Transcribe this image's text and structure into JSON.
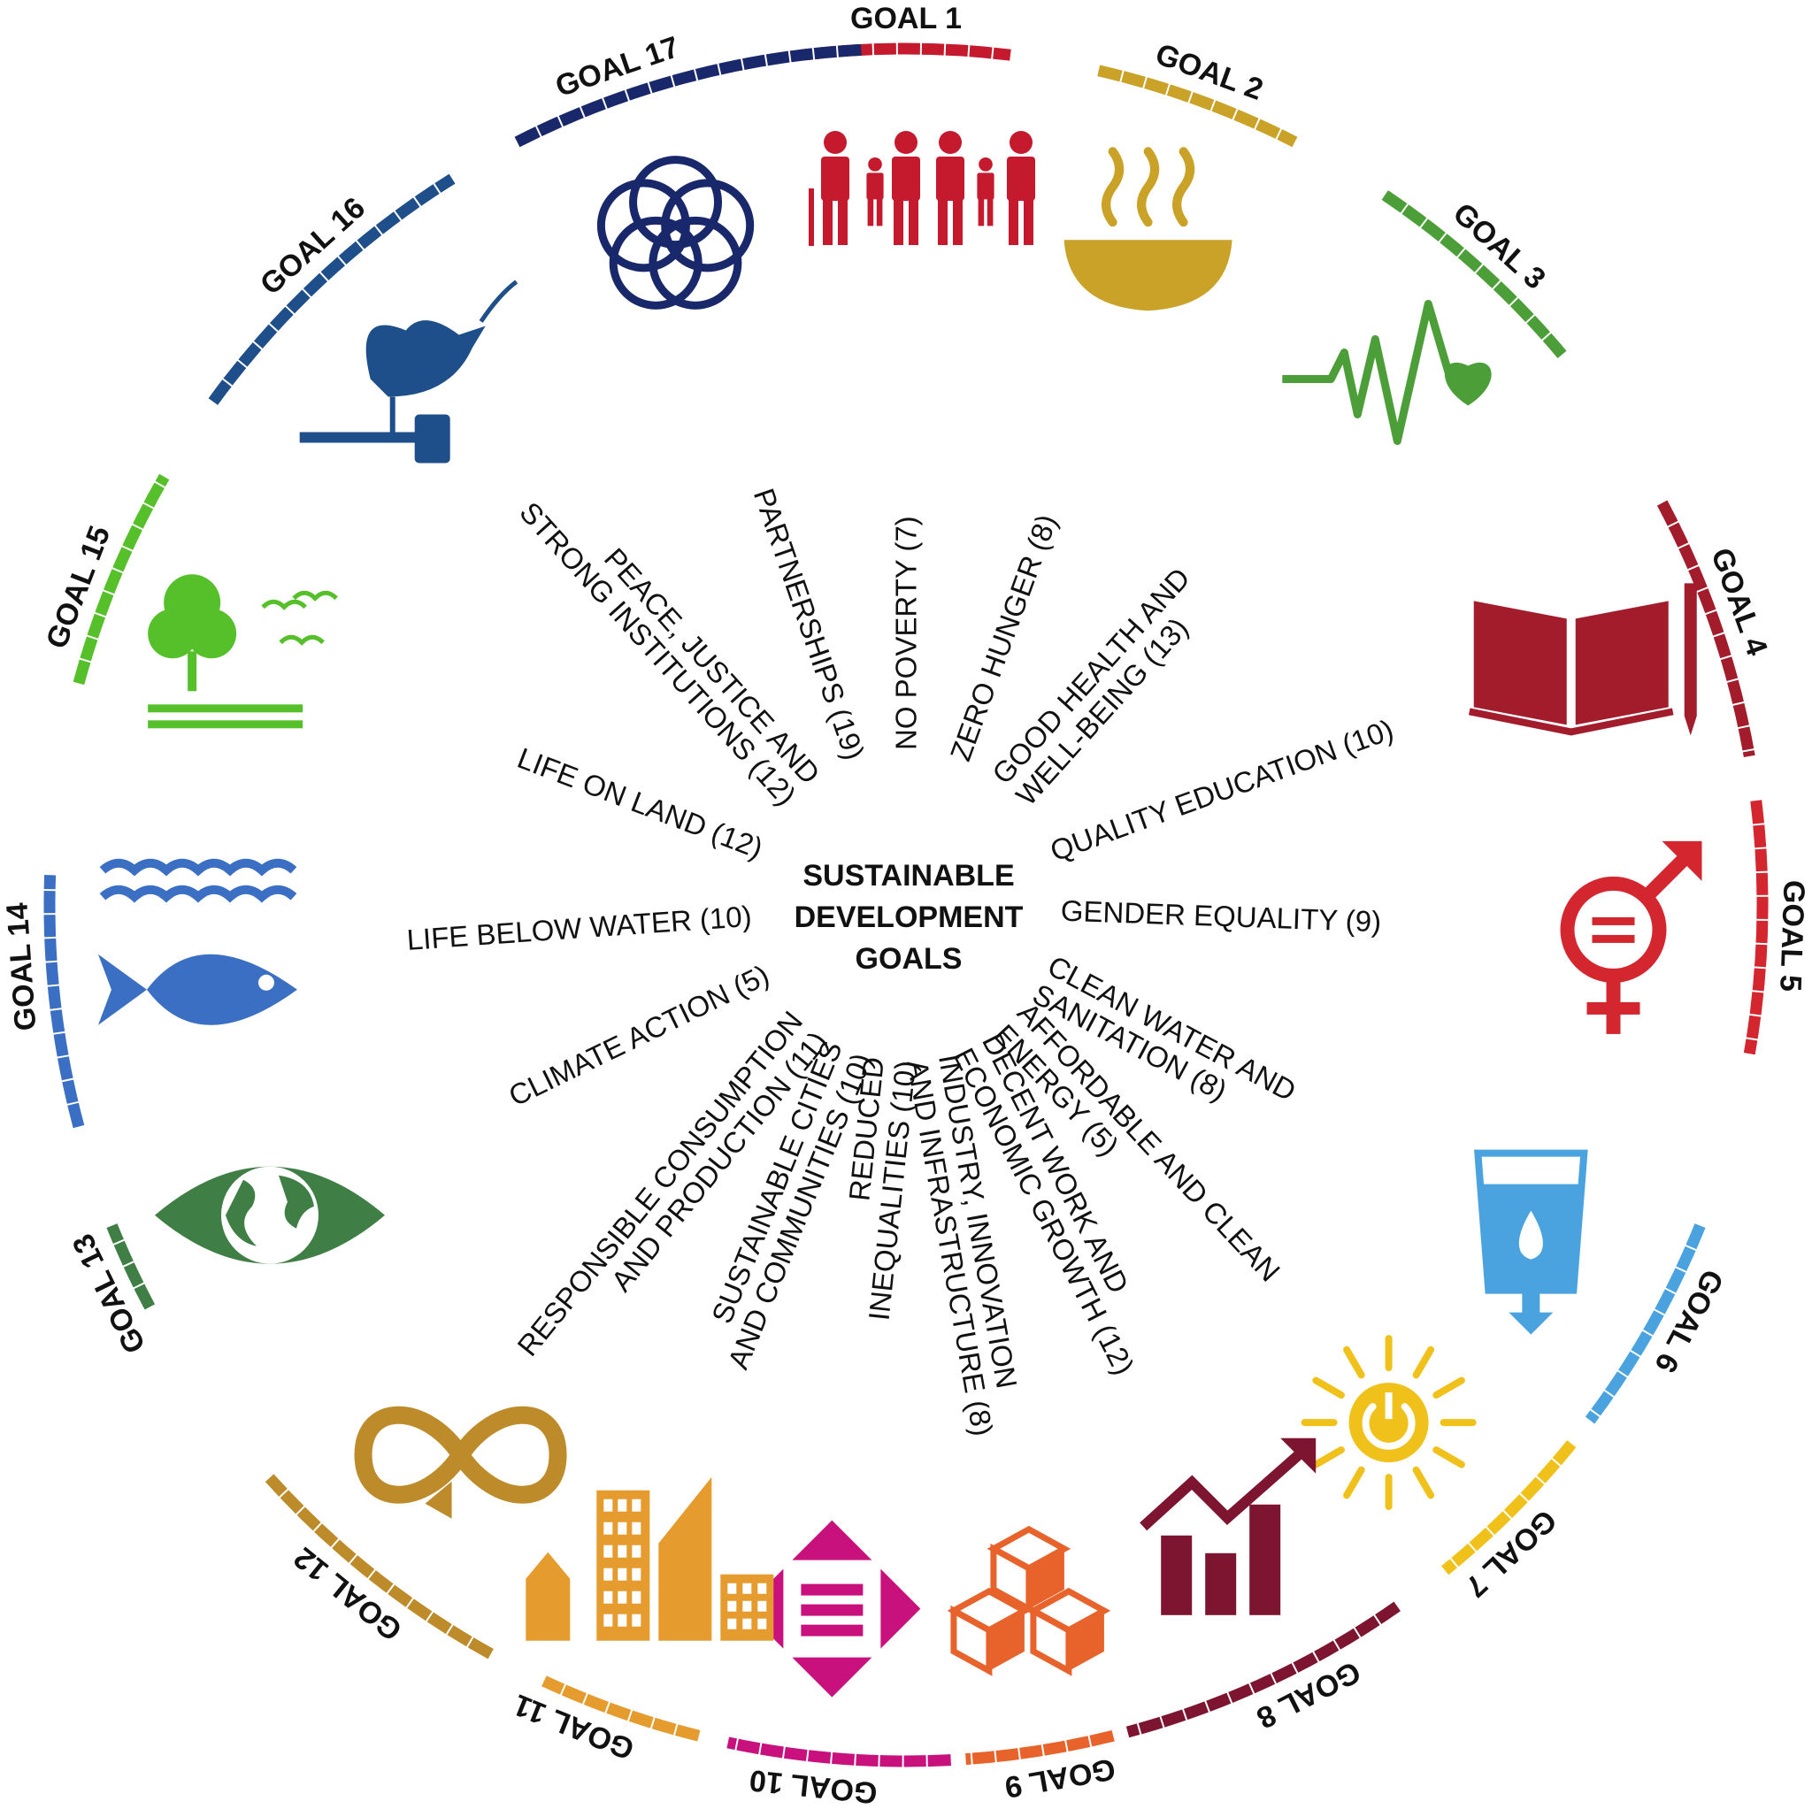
{
  "center": {
    "lines": [
      "SUSTAINABLE",
      "DEVELOPMENT",
      "GOALS"
    ]
  },
  "goals": [
    {
      "id": 1,
      "label": "GOAL 1",
      "color": "#C5192D",
      "icon": "family-icon",
      "spoke": [
        "NO POVERTY (7)"
      ]
    },
    {
      "id": 2,
      "label": "GOAL 2",
      "color": "#C9A227",
      "icon": "food-bowl-icon",
      "spoke": [
        "ZERO HUNGER (8)"
      ]
    },
    {
      "id": 3,
      "label": "GOAL 3",
      "color": "#4C9F38",
      "icon": "heartbeat-icon",
      "spoke": [
        "GOOD HEALTH AND",
        "WELL-BEING (13)"
      ]
    },
    {
      "id": 4,
      "label": "GOAL 4",
      "color": "#A21C2C",
      "icon": "book-pencil-icon",
      "spoke": [
        "QUALITY EDUCATION (10)"
      ]
    },
    {
      "id": 5,
      "label": "GOAL 5",
      "color": "#D3262E",
      "icon": "gender-equality-icon",
      "spoke": [
        "GENDER EQUALITY (9)"
      ]
    },
    {
      "id": 6,
      "label": "GOAL 6",
      "color": "#4AA3DF",
      "icon": "water-glass-icon",
      "spoke": [
        "CLEAN WATER AND",
        "SANITATION (8)"
      ]
    },
    {
      "id": 7,
      "label": "GOAL 7",
      "color": "#F0C11A",
      "icon": "sun-power-icon",
      "spoke": [
        "AFFORDABLE AND CLEAN",
        "ENERGY (5)"
      ]
    },
    {
      "id": 8,
      "label": "GOAL 8",
      "color": "#7E1530",
      "icon": "growth-chart-icon",
      "spoke": [
        "DECENT WORK AND",
        "ECONOMIC GROWTH (12)"
      ]
    },
    {
      "id": 9,
      "label": "GOAL 9",
      "color": "#E8632B",
      "icon": "cubes-icon",
      "spoke": [
        "INDUSTRY, INNOVATION",
        "AND INFRASTRUCTURE (8)"
      ]
    },
    {
      "id": 10,
      "label": "GOAL 10",
      "color": "#C8117D",
      "icon": "equality-arrows-icon",
      "spoke": [
        "REDUCED",
        "INEQUALITIES (10)"
      ]
    },
    {
      "id": 11,
      "label": "GOAL 11",
      "color": "#E59B2D",
      "icon": "city-buildings-icon",
      "spoke": [
        "SUSTAINABLE CITIES",
        "AND COMMUNITIES (10)"
      ]
    },
    {
      "id": 12,
      "label": "GOAL 12",
      "color": "#BE8B2B",
      "icon": "infinity-loop-icon",
      "spoke": [
        "RESPONSIBLE CONSUMPTION",
        "AND PRODUCTION (11)"
      ]
    },
    {
      "id": 13,
      "label": "GOAL 13",
      "color": "#3F7E44",
      "icon": "earth-eye-icon",
      "spoke": [
        "CLIMATE ACTION (5)"
      ]
    },
    {
      "id": 14,
      "label": "GOAL 14",
      "color": "#3A6FC4",
      "icon": "fish-waves-icon",
      "spoke": [
        "LIFE BELOW WATER (10)"
      ]
    },
    {
      "id": 15,
      "label": "GOAL 15",
      "color": "#56C02B",
      "icon": "tree-birds-icon",
      "spoke": [
        "LIFE ON LAND (12)"
      ]
    },
    {
      "id": 16,
      "label": "GOAL 16",
      "color": "#1E4F8B",
      "icon": "dove-gavel-icon",
      "spoke": [
        "PEACE, JUSTICE AND",
        "STRONG INSTITUTIONS (12)"
      ]
    },
    {
      "id": 17,
      "label": "GOAL 17",
      "color": "#19286A",
      "icon": "interlocked-rings-icon",
      "spoke": [
        "PARTNERSHIPS (19)"
      ]
    }
  ]
}
